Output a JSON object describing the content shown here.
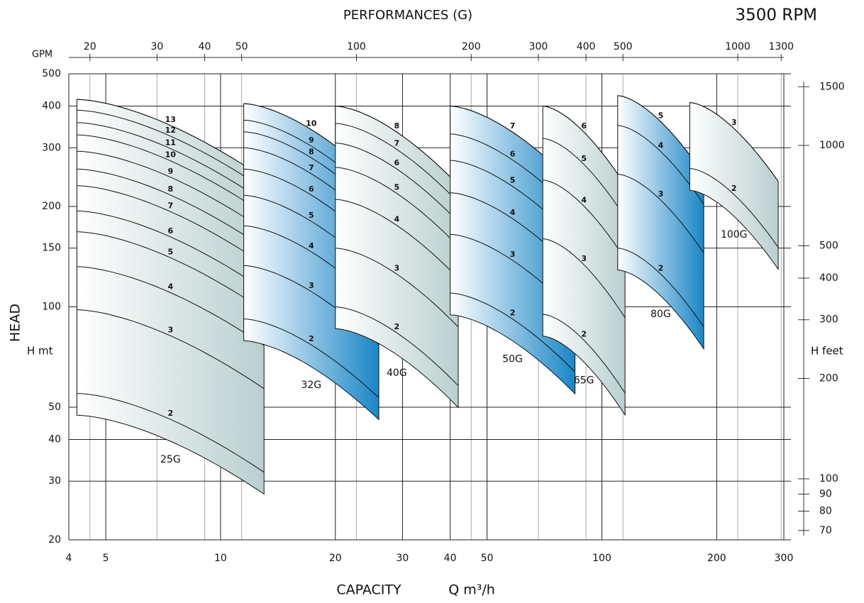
{
  "chart_data": {
    "type": "pump-chart",
    "title": "PERFORMANCES (G)",
    "subtitle": "3500 RPM",
    "subtitle_color": "#1b5d8f",
    "xlabel": "CAPACITY",
    "xunit": "Q m³/h",
    "ylabel": "HEAD",
    "yunit": "H mt",
    "y2unit": "H feet",
    "x2unit": "GPM",
    "xscale": "log",
    "yscale": "log",
    "xlim": [
      4,
      300
    ],
    "xticks": [
      4,
      5,
      10,
      20,
      30,
      40,
      50,
      100,
      200,
      300
    ],
    "ylim": [
      20,
      500
    ],
    "yticks": [
      20,
      30,
      40,
      50,
      100,
      150,
      200,
      300,
      400,
      500
    ],
    "x2lim": [
      17.61,
      1320.9
    ],
    "x2ticks": [
      20,
      30,
      40,
      50,
      100,
      200,
      300,
      400,
      500,
      1000,
      1300
    ],
    "y2lim": [
      65.6,
      1640.4
    ],
    "y2ticks": [
      70,
      80,
      90,
      100,
      200,
      300,
      400,
      500,
      1000,
      1500
    ],
    "grid": true,
    "families": [
      {
        "name": "25G",
        "color": "#b9cfcf",
        "qlo": 4.2,
        "qhi": 13,
        "stages": [
          {
            "label": 13,
            "head": 419
          },
          {
            "label": 12,
            "head": 389
          },
          {
            "label": 11,
            "head": 357
          },
          {
            "label": 10,
            "head": 328
          },
          {
            "label": 9,
            "head": 293
          },
          {
            "label": 8,
            "head": 259
          },
          {
            "label": 7,
            "head": 231
          },
          {
            "label": 6,
            "head": 194
          },
          {
            "label": 5,
            "head": 168
          },
          {
            "label": 4,
            "head": 132
          },
          {
            "label": 3,
            "head": 98
          },
          {
            "label": 2,
            "head": 55
          }
        ]
      },
      {
        "name": "32G",
        "color": "#1a86c6",
        "qlo": 11.5,
        "qhi": 26,
        "stages": [
          {
            "label": 10,
            "head": 407
          },
          {
            "label": 9,
            "head": 363
          },
          {
            "label": 8,
            "head": 335
          },
          {
            "label": 7,
            "head": 300
          },
          {
            "label": 6,
            "head": 259
          },
          {
            "label": 5,
            "head": 216
          },
          {
            "label": 4,
            "head": 175
          },
          {
            "label": 3,
            "head": 133
          },
          {
            "label": 2,
            "head": 92
          }
        ]
      },
      {
        "name": "40G",
        "color": "#b9cfcf",
        "qlo": 20,
        "qhi": 42,
        "stages": [
          {
            "label": 8,
            "head": 400
          },
          {
            "label": 7,
            "head": 355
          },
          {
            "label": 6,
            "head": 310
          },
          {
            "label": 5,
            "head": 262
          },
          {
            "label": 4,
            "head": 210
          },
          {
            "label": 3,
            "head": 150
          },
          {
            "label": 2,
            "head": 100
          }
        ]
      },
      {
        "name": "50G",
        "color": "#1a86c6",
        "qlo": 40,
        "qhi": 85,
        "stages": [
          {
            "label": 7,
            "head": 400
          },
          {
            "label": 6,
            "head": 330
          },
          {
            "label": 5,
            "head": 275
          },
          {
            "label": 4,
            "head": 220
          },
          {
            "label": 3,
            "head": 165
          },
          {
            "label": 2,
            "head": 110
          }
        ]
      },
      {
        "name": "65G",
        "color": "#b9cfcf",
        "qlo": 70,
        "qhi": 115,
        "stages": [
          {
            "label": 6,
            "head": 400
          },
          {
            "label": 5,
            "head": 320
          },
          {
            "label": 4,
            "head": 240
          },
          {
            "label": 3,
            "head": 160
          },
          {
            "label": 2,
            "head": 95
          }
        ]
      },
      {
        "name": "80G",
        "color": "#1a86c6",
        "qlo": 110,
        "qhi": 185,
        "stages": [
          {
            "label": 5,
            "head": 430
          },
          {
            "label": 4,
            "head": 350
          },
          {
            "label": 3,
            "head": 250
          },
          {
            "label": 2,
            "head": 150
          }
        ]
      },
      {
        "name": "100G",
        "color": "#b9cfcf",
        "qlo": 170,
        "qhi": 290,
        "stages": [
          {
            "label": 3,
            "head": 410
          },
          {
            "label": 2,
            "head": 260
          }
        ]
      }
    ]
  }
}
